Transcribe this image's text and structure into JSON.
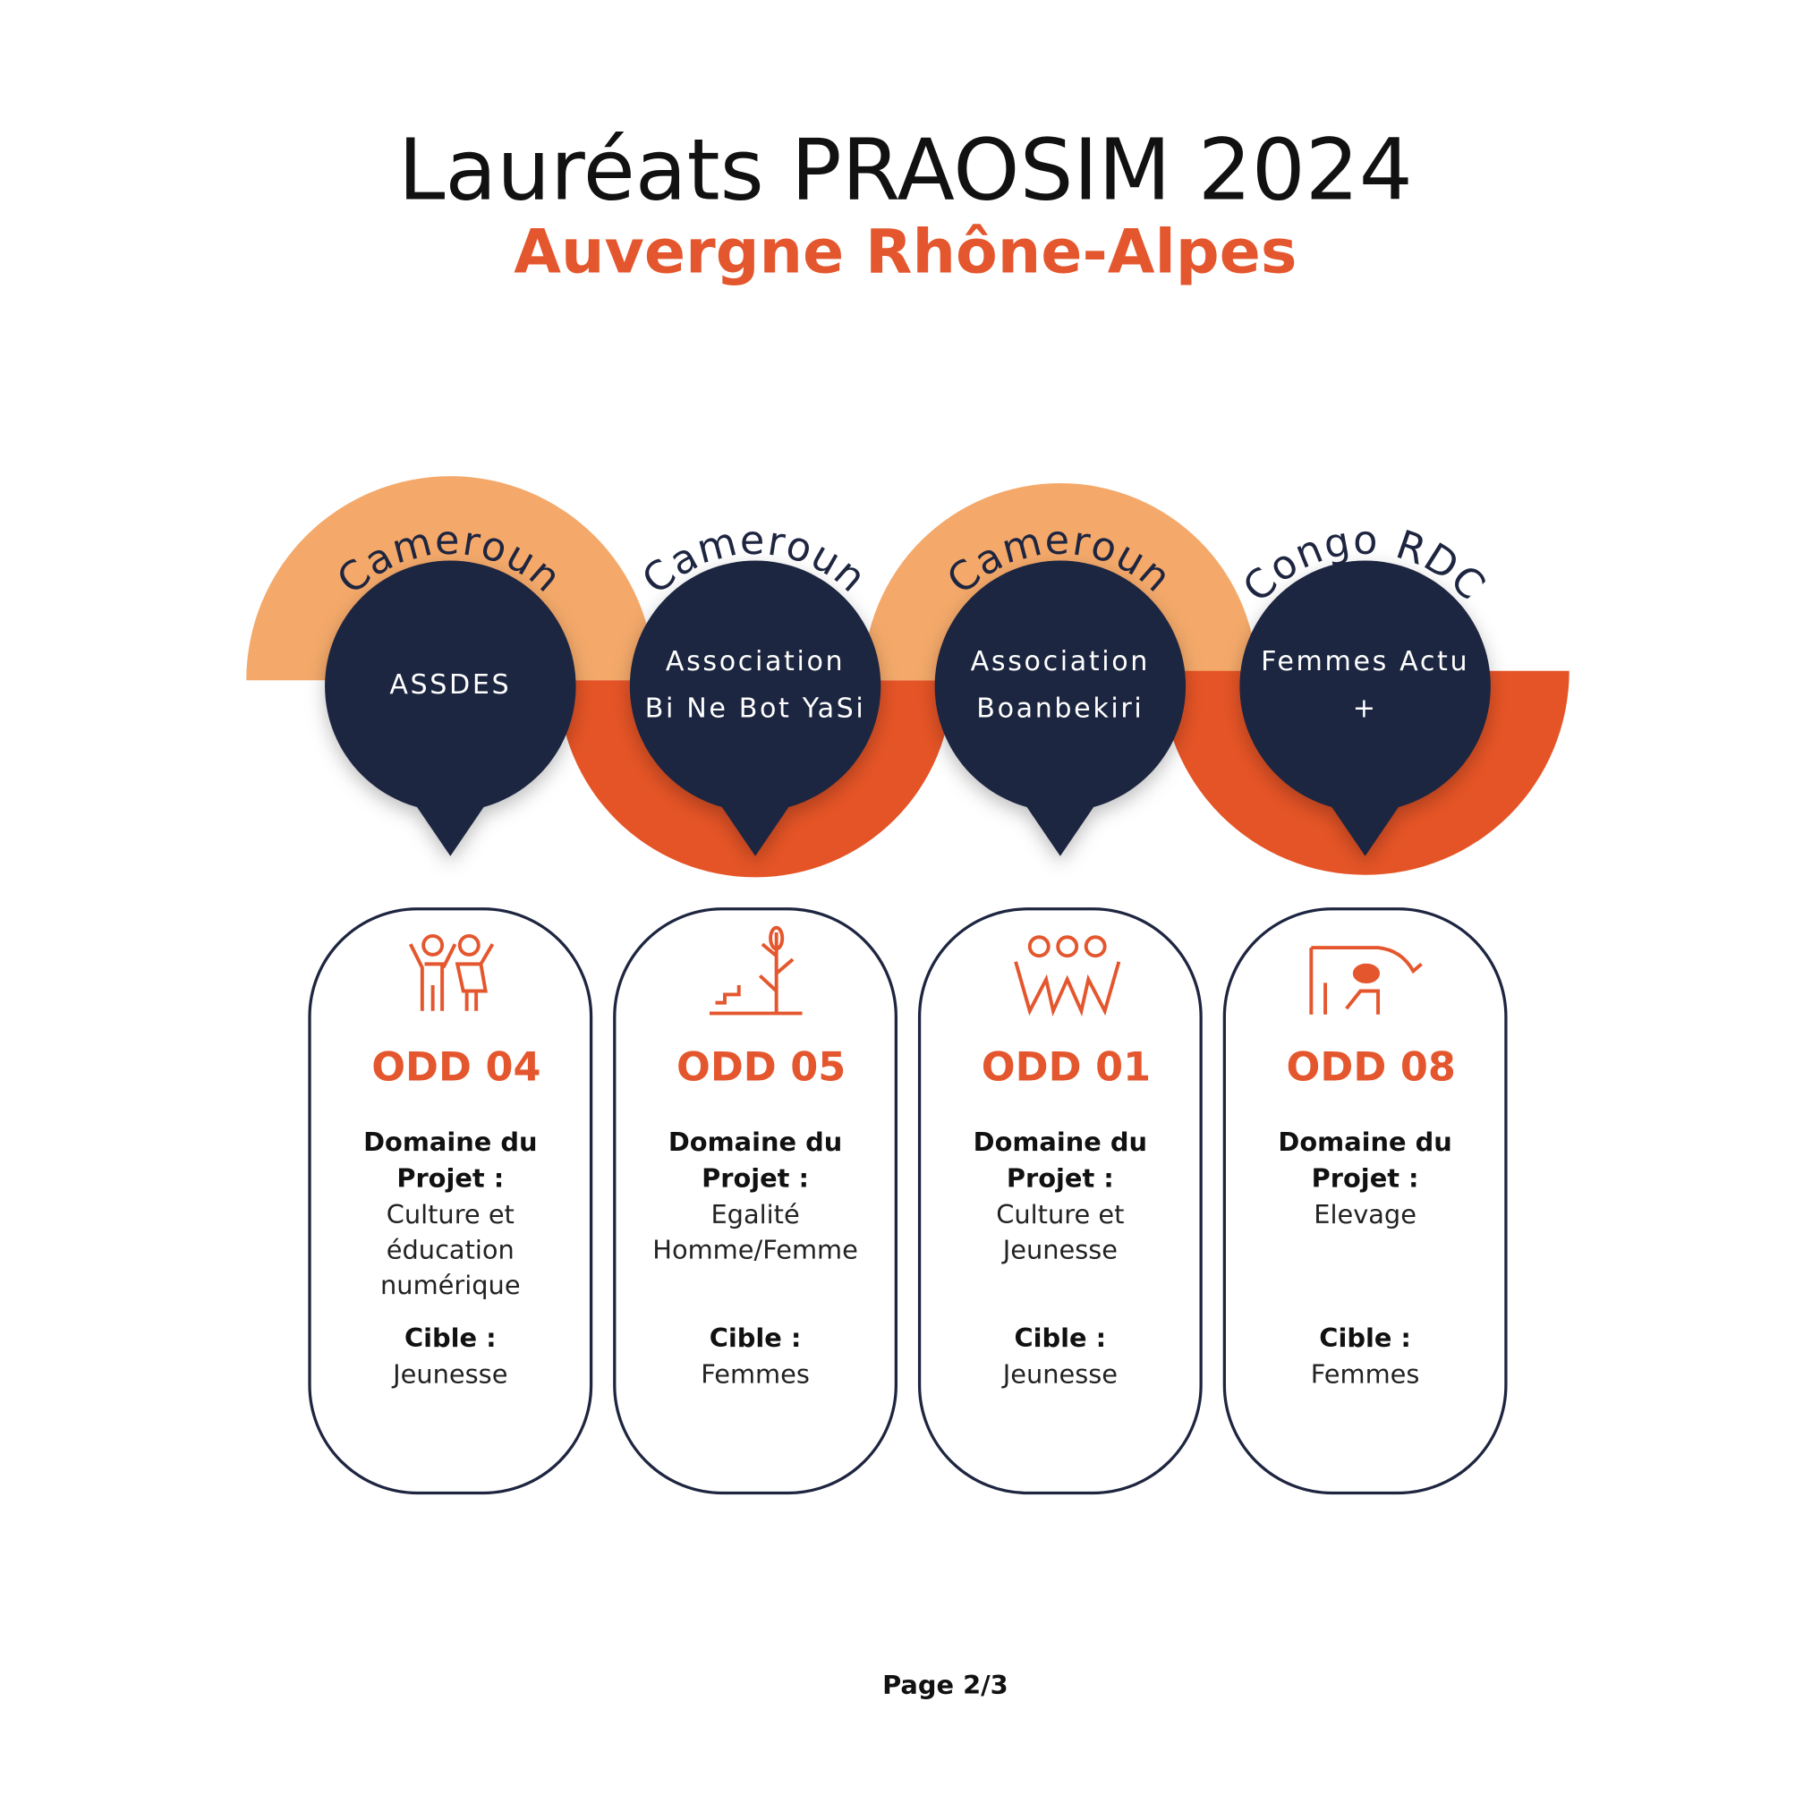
{
  "header": {
    "title": "Lauréats PRAOSIM 2024",
    "subtitle": "Auvergne Rhône-Alpes"
  },
  "laureates": [
    {
      "country": "Cameroun",
      "name_lines": [
        "ASSDES"
      ],
      "odd": "ODD 04",
      "domain_label": [
        "Domaine du",
        "Projet :"
      ],
      "domain_lines": [
        "Culture et",
        "éducation",
        "numérique"
      ],
      "target_label": "Cible :",
      "target": "Jeunesse"
    },
    {
      "country": "Cameroun",
      "name_lines": [
        "Association",
        "Bi Ne Bot YaSi"
      ],
      "odd": "ODD 05",
      "domain_label": [
        "Domaine du",
        "Projet :"
      ],
      "domain_lines": [
        "Egalité",
        "Homme/Femme"
      ],
      "target_label": "Cible :",
      "target": "Femmes"
    },
    {
      "country": "Cameroun",
      "name_lines": [
        "Association",
        "Boanbekiri"
      ],
      "odd": "ODD 01",
      "domain_label": [
        "Domaine du",
        "Projet :"
      ],
      "domain_lines": [
        "Culture et",
        "Jeunesse"
      ],
      "target_label": "Cible :",
      "target": "Jeunesse"
    },
    {
      "country": "Congo RDC",
      "name_lines": [
        "Femmes Actu",
        "+"
      ],
      "odd": "ODD 08",
      "domain_label": [
        "Domaine du",
        "Projet :"
      ],
      "domain_lines": [
        "Elevage"
      ],
      "target_label": "Cible :",
      "target": "Femmes"
    }
  ],
  "footer": "Page 2/3"
}
